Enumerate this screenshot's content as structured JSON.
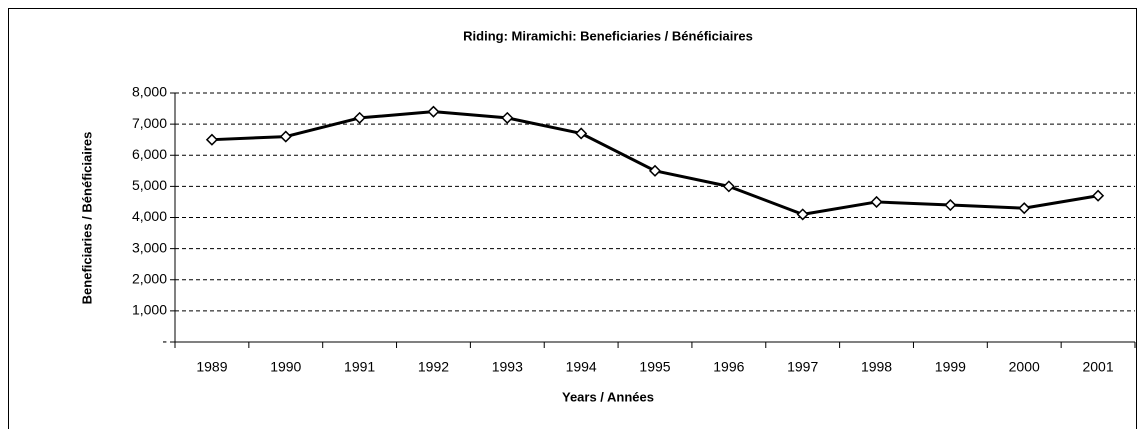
{
  "chart_data": {
    "type": "line",
    "title": "Riding:  Miramichi:  Beneficiaries / Bénéficiaires",
    "x_label": "Years / Années",
    "y_label": "Beneficiaries / Bénéficiaires",
    "categories": [
      "1989",
      "1990",
      "1991",
      "1992",
      "1993",
      "1994",
      "1995",
      "1996",
      "1997",
      "1998",
      "1999",
      "2000",
      "2001"
    ],
    "values": [
      6500,
      6600,
      7200,
      7400,
      7200,
      6700,
      5500,
      5000,
      4100,
      4500,
      4400,
      4300,
      4700
    ],
    "color": "#000000",
    "ylim": [
      0,
      8000
    ],
    "yticks": [
      {
        "value": 0,
        "label": "-"
      },
      {
        "value": 1000,
        "label": "1,000"
      },
      {
        "value": 2000,
        "label": "2,000"
      },
      {
        "value": 3000,
        "label": "3,000"
      },
      {
        "value": 4000,
        "label": "4,000"
      },
      {
        "value": 5000,
        "label": "5,000"
      },
      {
        "value": 6000,
        "label": "6,000"
      },
      {
        "value": 7000,
        "label": "7,000"
      },
      {
        "value": 8000,
        "label": "8,000"
      }
    ],
    "grid": true
  }
}
